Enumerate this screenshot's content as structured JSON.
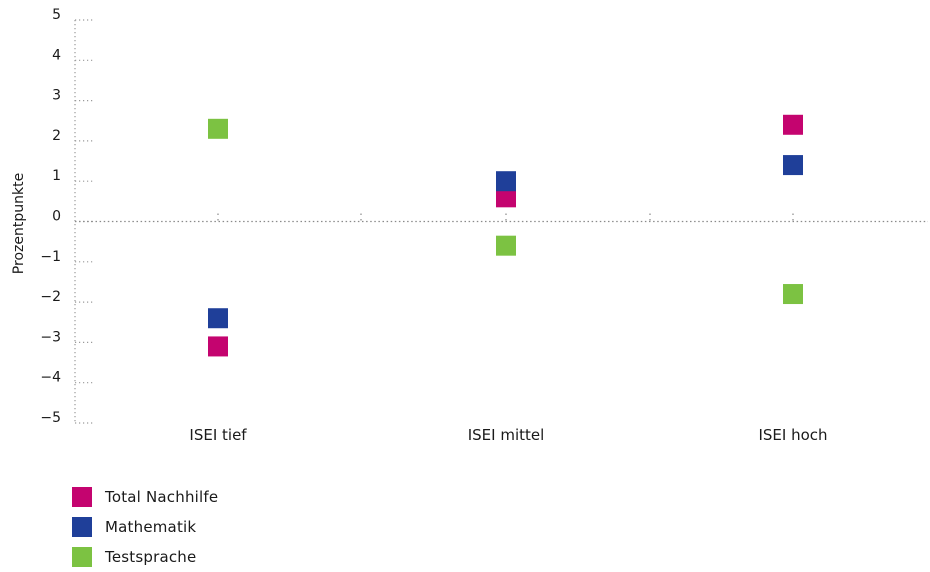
{
  "chart_data": {
    "type": "scatter",
    "title": "",
    "xlabel": "",
    "ylabel": "Prozentpunkte",
    "ylim": [
      -5,
      5
    ],
    "yticks": [
      5,
      4,
      3,
      2,
      1,
      0,
      -1,
      -2,
      -3,
      -4,
      -5
    ],
    "ytick_labels": [
      "5",
      "4",
      "3",
      "2",
      "1",
      "0",
      "−1",
      "−2",
      "−3",
      "−4",
      "−5"
    ],
    "categories": [
      "ISEI tief",
      "ISEI mittel",
      "ISEI hoch"
    ],
    "grid": "dotted",
    "legend_position": "bottom-left",
    "series": [
      {
        "name": "Total Nachhilfe",
        "color": "#c4046f",
        "values": [
          -3.1,
          0.6,
          2.4
        ]
      },
      {
        "name": "Mathematik",
        "color": "#1f3f99",
        "values": [
          -2.4,
          1.0,
          1.4
        ]
      },
      {
        "name": "Testsprache",
        "color": "#7cc242",
        "values": [
          2.3,
          -0.6,
          -1.8
        ]
      }
    ]
  }
}
